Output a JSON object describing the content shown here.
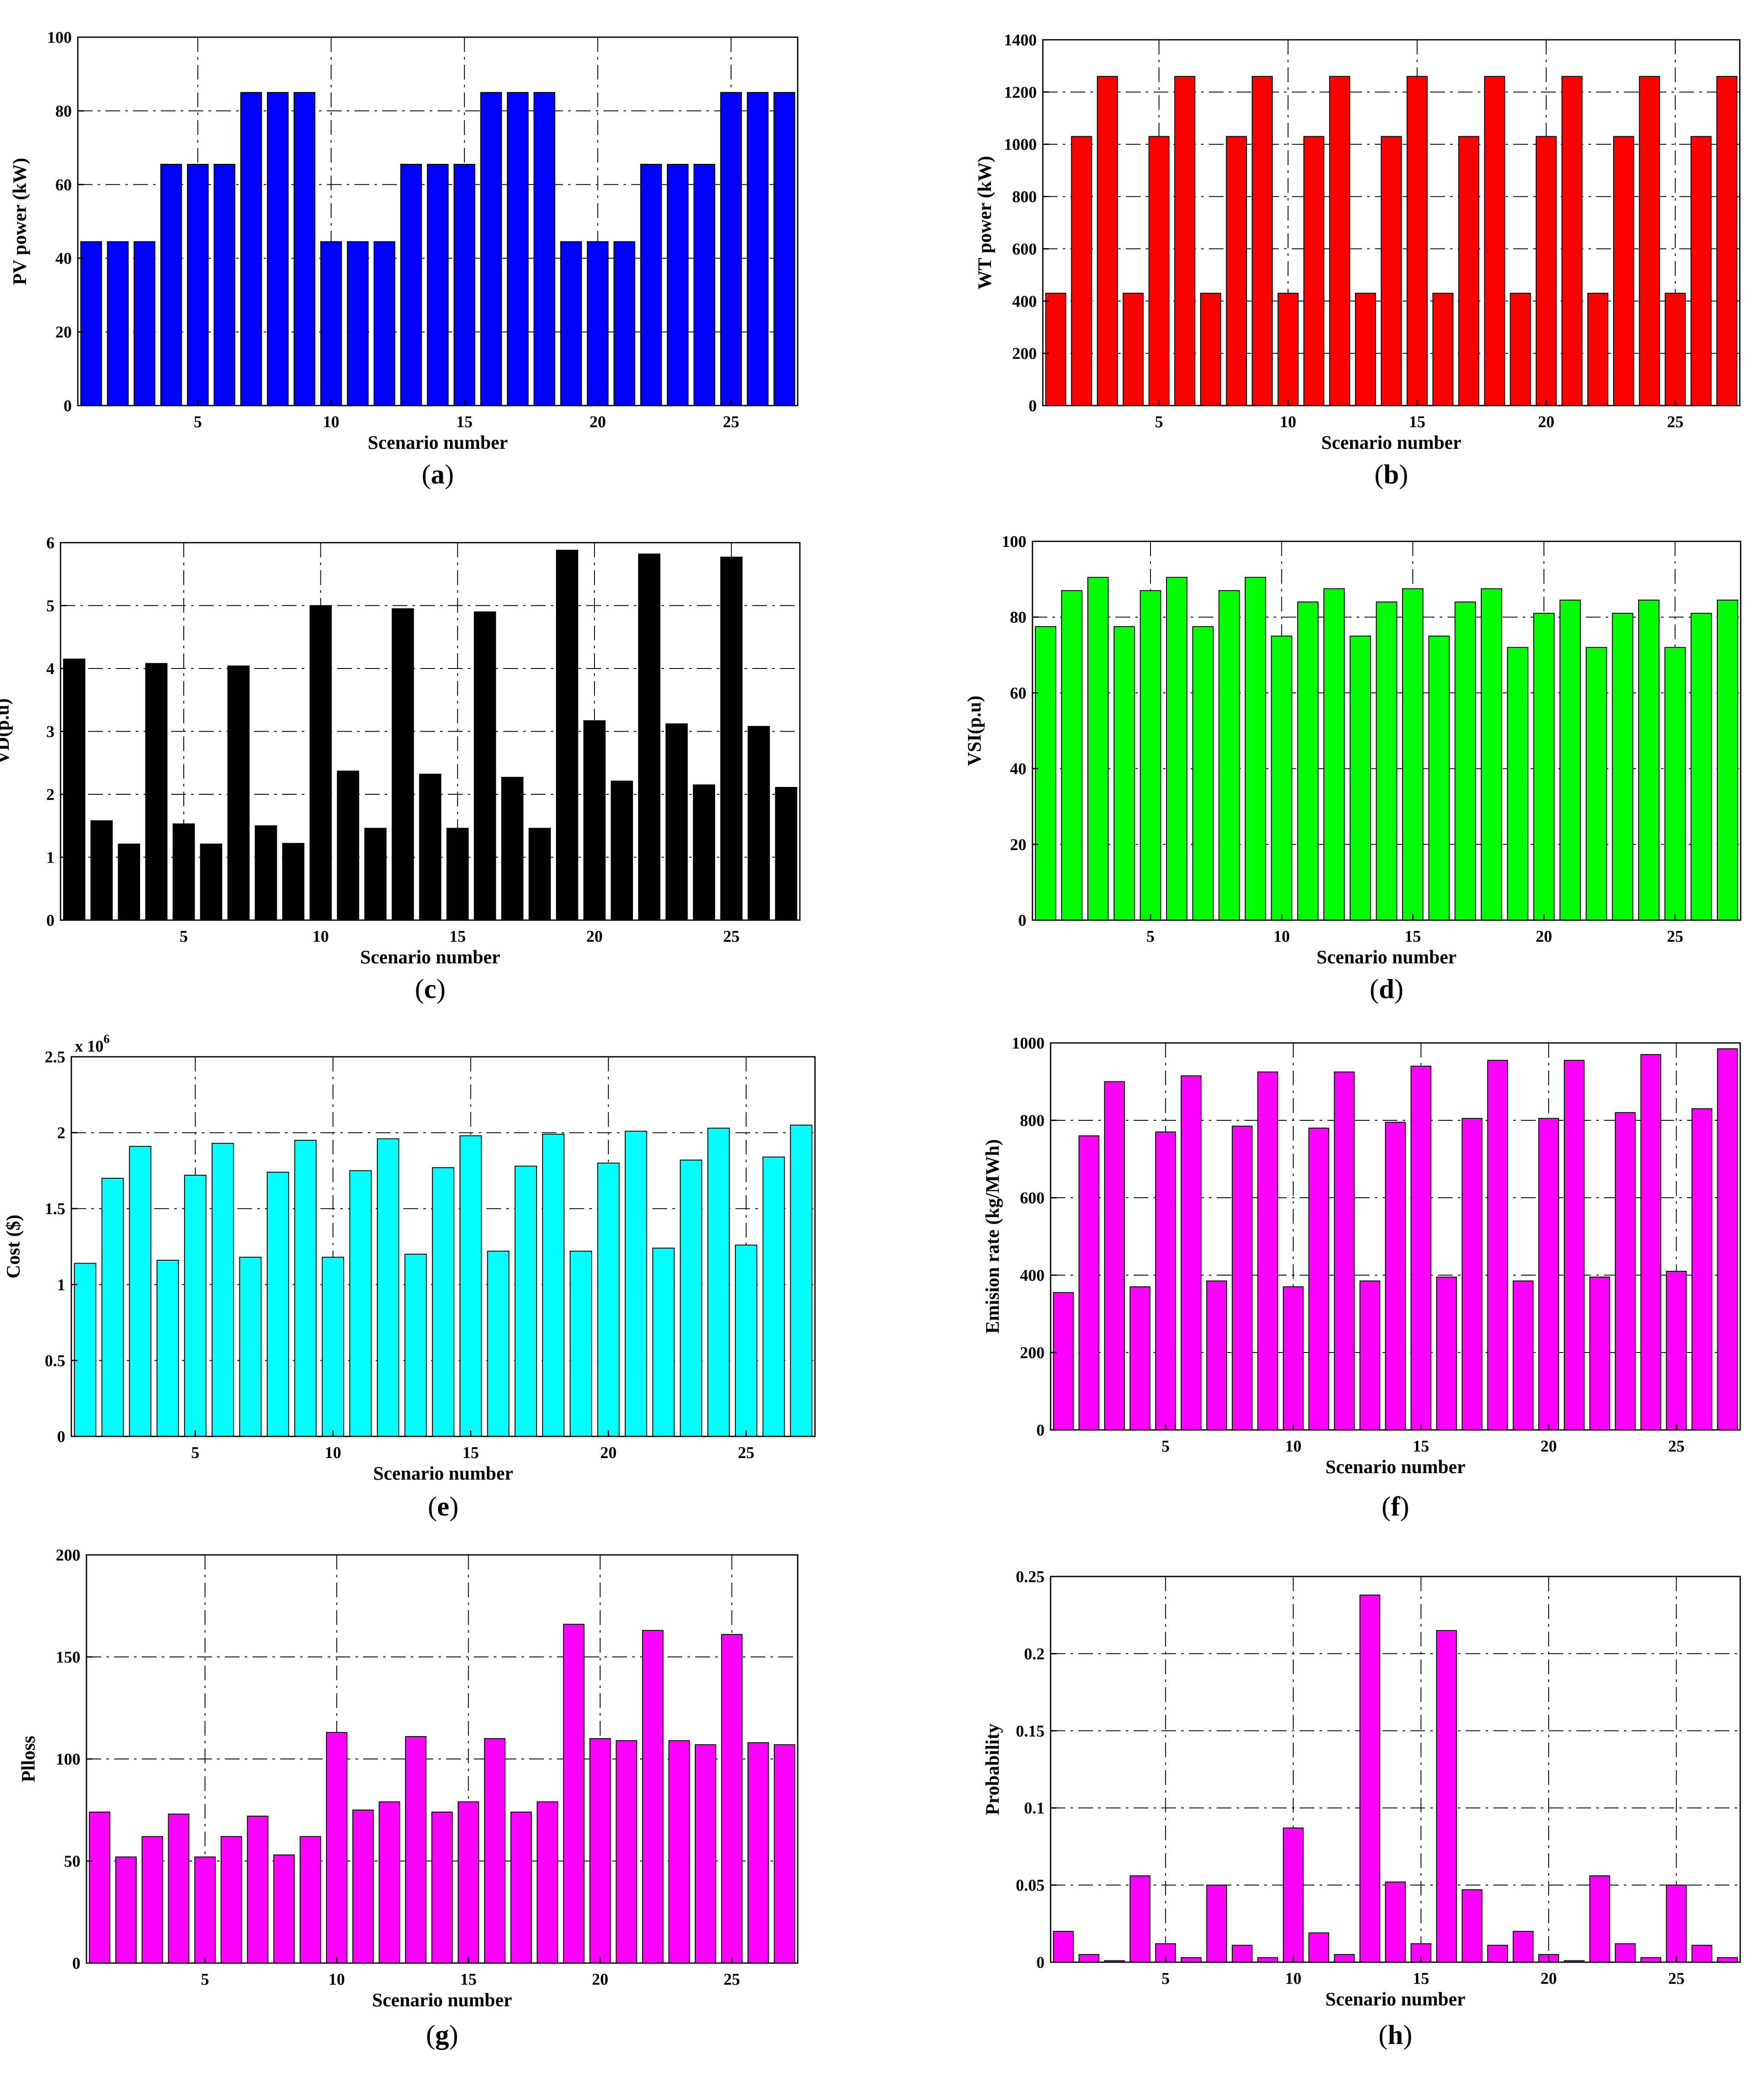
{
  "figure": {
    "panels": [
      {
        "id": "a",
        "caption_letter": "a",
        "xlabel": "Scenario number",
        "ylabel": "PV power (kW)",
        "multiplier": "",
        "exp": ""
      },
      {
        "id": "b",
        "caption_letter": "b",
        "xlabel": "Scenario number",
        "ylabel": "WT power (kW)",
        "multiplier": "",
        "exp": ""
      },
      {
        "id": "c",
        "caption_letter": "c",
        "xlabel": "Scenario number",
        "ylabel": "VD(p.u)",
        "multiplier": "",
        "exp": ""
      },
      {
        "id": "d",
        "caption_letter": "d",
        "xlabel": "Scenario number",
        "ylabel": "VSI(p.u)",
        "multiplier": "",
        "exp": ""
      },
      {
        "id": "e",
        "caption_letter": "e",
        "xlabel": "Scenario number",
        "ylabel": "Cost ($)",
        "multiplier": "x 10",
        "exp": "6"
      },
      {
        "id": "f",
        "caption_letter": "f",
        "xlabel": "Scenario number",
        "ylabel": "Emision rate (kg/MWh)",
        "multiplier": "",
        "exp": ""
      },
      {
        "id": "g",
        "caption_letter": "g",
        "xlabel": "Scenario number",
        "ylabel": "Plloss",
        "multiplier": "",
        "exp": ""
      },
      {
        "id": "h",
        "caption_letter": "h",
        "xlabel": "Scenario number",
        "ylabel": "Probability",
        "multiplier": "",
        "exp": ""
      }
    ]
  },
  "chart_data": [
    {
      "type": "bar",
      "id": "a",
      "title": "",
      "xlabel": "Scenario number",
      "ylabel": "PV power (kW)",
      "color": "#0000FF",
      "categories": [
        1,
        2,
        3,
        4,
        5,
        6,
        7,
        8,
        9,
        10,
        11,
        12,
        13,
        14,
        15,
        16,
        17,
        18,
        19,
        20,
        21,
        22,
        23,
        24,
        25,
        26,
        27
      ],
      "values": [
        44.5,
        44.5,
        44.5,
        65.5,
        65.5,
        65.5,
        85,
        85,
        85,
        44.5,
        44.5,
        44.5,
        65.5,
        65.5,
        65.5,
        85,
        85,
        85,
        44.5,
        44.5,
        44.5,
        65.5,
        65.5,
        65.5,
        85,
        85,
        85
      ],
      "ylim": [
        0,
        100
      ],
      "yticks": [
        "0",
        "20",
        "40",
        "60",
        "80",
        "100"
      ],
      "xticks": [
        "5",
        "10",
        "15",
        "20",
        "25"
      ]
    },
    {
      "type": "bar",
      "id": "b",
      "title": "",
      "xlabel": "Scenario number",
      "ylabel": "WT power (kW)",
      "color": "#FF0000",
      "categories": [
        1,
        2,
        3,
        4,
        5,
        6,
        7,
        8,
        9,
        10,
        11,
        12,
        13,
        14,
        15,
        16,
        17,
        18,
        19,
        20,
        21,
        22,
        23,
        24,
        25,
        26,
        27
      ],
      "values": [
        430,
        1030,
        1260,
        430,
        1030,
        1260,
        430,
        1030,
        1260,
        430,
        1030,
        1260,
        430,
        1030,
        1260,
        430,
        1030,
        1260,
        430,
        1030,
        1260,
        430,
        1030,
        1260,
        430,
        1030,
        1260
      ],
      "ylim": [
        0,
        1400
      ],
      "yticks": [
        "0",
        "200",
        "400",
        "600",
        "800",
        "1000",
        "1200",
        "1400"
      ],
      "xticks": [
        "5",
        "10",
        "15",
        "20",
        "25"
      ]
    },
    {
      "type": "bar",
      "id": "c",
      "title": "",
      "xlabel": "Scenario number",
      "ylabel": "VD(p.u)",
      "color": "#000000",
      "categories": [
        1,
        2,
        3,
        4,
        5,
        6,
        7,
        8,
        9,
        10,
        11,
        12,
        13,
        14,
        15,
        16,
        17,
        18,
        19,
        20,
        21,
        22,
        23,
        24,
        25,
        26,
        27
      ],
      "values": [
        4.15,
        1.58,
        1.21,
        4.08,
        1.53,
        1.21,
        4.04,
        1.5,
        1.22,
        5.0,
        2.37,
        1.46,
        4.95,
        2.32,
        1.46,
        4.9,
        2.27,
        1.46,
        5.88,
        3.17,
        2.21,
        5.82,
        3.12,
        2.15,
        5.77,
        3.08,
        2.11
      ],
      "ylim": [
        0,
        6
      ],
      "yticks": [
        "0",
        "1",
        "2",
        "3",
        "4",
        "5",
        "6"
      ],
      "xticks": [
        "5",
        "10",
        "15",
        "20",
        "25"
      ]
    },
    {
      "type": "bar",
      "id": "d",
      "title": "",
      "xlabel": "Scenario number",
      "ylabel": "VSI(p.u)",
      "color": "#00FF00",
      "categories": [
        1,
        2,
        3,
        4,
        5,
        6,
        7,
        8,
        9,
        10,
        11,
        12,
        13,
        14,
        15,
        16,
        17,
        18,
        19,
        20,
        21,
        22,
        23,
        24,
        25,
        26,
        27
      ],
      "values": [
        77.5,
        87,
        90.5,
        77.5,
        87,
        90.5,
        77.5,
        87,
        90.5,
        75,
        84,
        87.5,
        75,
        84,
        87.5,
        75,
        84,
        87.5,
        72,
        81,
        84.5,
        72,
        81,
        84.5,
        72,
        81,
        84.5
      ],
      "ylim": [
        0,
        100
      ],
      "yticks": [
        "0",
        "20",
        "40",
        "60",
        "80",
        "100"
      ],
      "xticks": [
        "5",
        "10",
        "15",
        "20",
        "25"
      ]
    },
    {
      "type": "bar",
      "id": "e",
      "title": "",
      "xlabel": "Scenario number",
      "ylabel": "Cost ($)",
      "color": "#00FFFF",
      "multiplier": "x 10^6",
      "categories": [
        1,
        2,
        3,
        4,
        5,
        6,
        7,
        8,
        9,
        10,
        11,
        12,
        13,
        14,
        15,
        16,
        17,
        18,
        19,
        20,
        21,
        22,
        23,
        24,
        25,
        26,
        27
      ],
      "values": [
        1.14,
        1.7,
        1.91,
        1.16,
        1.72,
        1.93,
        1.18,
        1.74,
        1.95,
        1.18,
        1.75,
        1.96,
        1.2,
        1.77,
        1.98,
        1.22,
        1.78,
        1.99,
        1.22,
        1.8,
        2.01,
        1.24,
        1.82,
        2.03,
        1.26,
        1.84,
        2.05
      ],
      "ylim": [
        0,
        2.5
      ],
      "yticks": [
        "0",
        "0.5",
        "1",
        "1.5",
        "2",
        "2.5"
      ],
      "xticks": [
        "5",
        "10",
        "15",
        "20",
        "25"
      ]
    },
    {
      "type": "bar",
      "id": "f",
      "title": "",
      "xlabel": "Scenario number",
      "ylabel": "Emision rate (kg/MWh)",
      "color": "#FF00FF",
      "categories": [
        1,
        2,
        3,
        4,
        5,
        6,
        7,
        8,
        9,
        10,
        11,
        12,
        13,
        14,
        15,
        16,
        17,
        18,
        19,
        20,
        21,
        22,
        23,
        24,
        25,
        26,
        27
      ],
      "values": [
        355,
        760,
        900,
        370,
        770,
        915,
        385,
        785,
        925,
        370,
        780,
        925,
        385,
        795,
        940,
        395,
        805,
        955,
        385,
        805,
        955,
        395,
        820,
        970,
        410,
        830,
        985
      ],
      "ylim": [
        0,
        1000
      ],
      "yticks": [
        "0",
        "200",
        "400",
        "600",
        "800",
        "1000"
      ],
      "xticks": [
        "5",
        "10",
        "15",
        "20",
        "25"
      ]
    },
    {
      "type": "bar",
      "id": "g",
      "title": "",
      "xlabel": "Scenario number",
      "ylabel": "Plloss",
      "color": "#FF00FF",
      "categories": [
        1,
        2,
        3,
        4,
        5,
        6,
        7,
        8,
        9,
        10,
        11,
        12,
        13,
        14,
        15,
        16,
        17,
        18,
        19,
        20,
        21,
        22,
        23,
        24,
        25,
        26,
        27
      ],
      "values": [
        74,
        52,
        62,
        73,
        52,
        62,
        72,
        53,
        62,
        113,
        75,
        79,
        111,
        74,
        79,
        110,
        74,
        79,
        166,
        110,
        109,
        163,
        109,
        107,
        161,
        108,
        107
      ],
      "ylim": [
        0,
        200
      ],
      "yticks": [
        "0",
        "50",
        "100",
        "150",
        "200"
      ],
      "xticks": [
        "5",
        "10",
        "15",
        "20",
        "25"
      ]
    },
    {
      "type": "bar",
      "id": "h",
      "title": "",
      "xlabel": "Scenario number",
      "ylabel": "Probability",
      "color": "#FF00FF",
      "categories": [
        1,
        2,
        3,
        4,
        5,
        6,
        7,
        8,
        9,
        10,
        11,
        12,
        13,
        14,
        15,
        16,
        17,
        18,
        19,
        20,
        21,
        22,
        23,
        24,
        25,
        26,
        27
      ],
      "values": [
        0.02,
        0.005,
        0.001,
        0.056,
        0.012,
        0.003,
        0.05,
        0.011,
        0.003,
        0.087,
        0.019,
        0.005,
        0.238,
        0.052,
        0.012,
        0.215,
        0.047,
        0.011,
        0.02,
        0.005,
        0.001,
        0.056,
        0.012,
        0.003,
        0.05,
        0.011,
        0.003
      ],
      "ylim": [
        0,
        0.25
      ],
      "yticks": [
        "0",
        "0.05",
        "0.1",
        "0.15",
        "0.2",
        "0.25"
      ],
      "xticks": [
        "5",
        "10",
        "15",
        "20",
        "25"
      ]
    }
  ]
}
